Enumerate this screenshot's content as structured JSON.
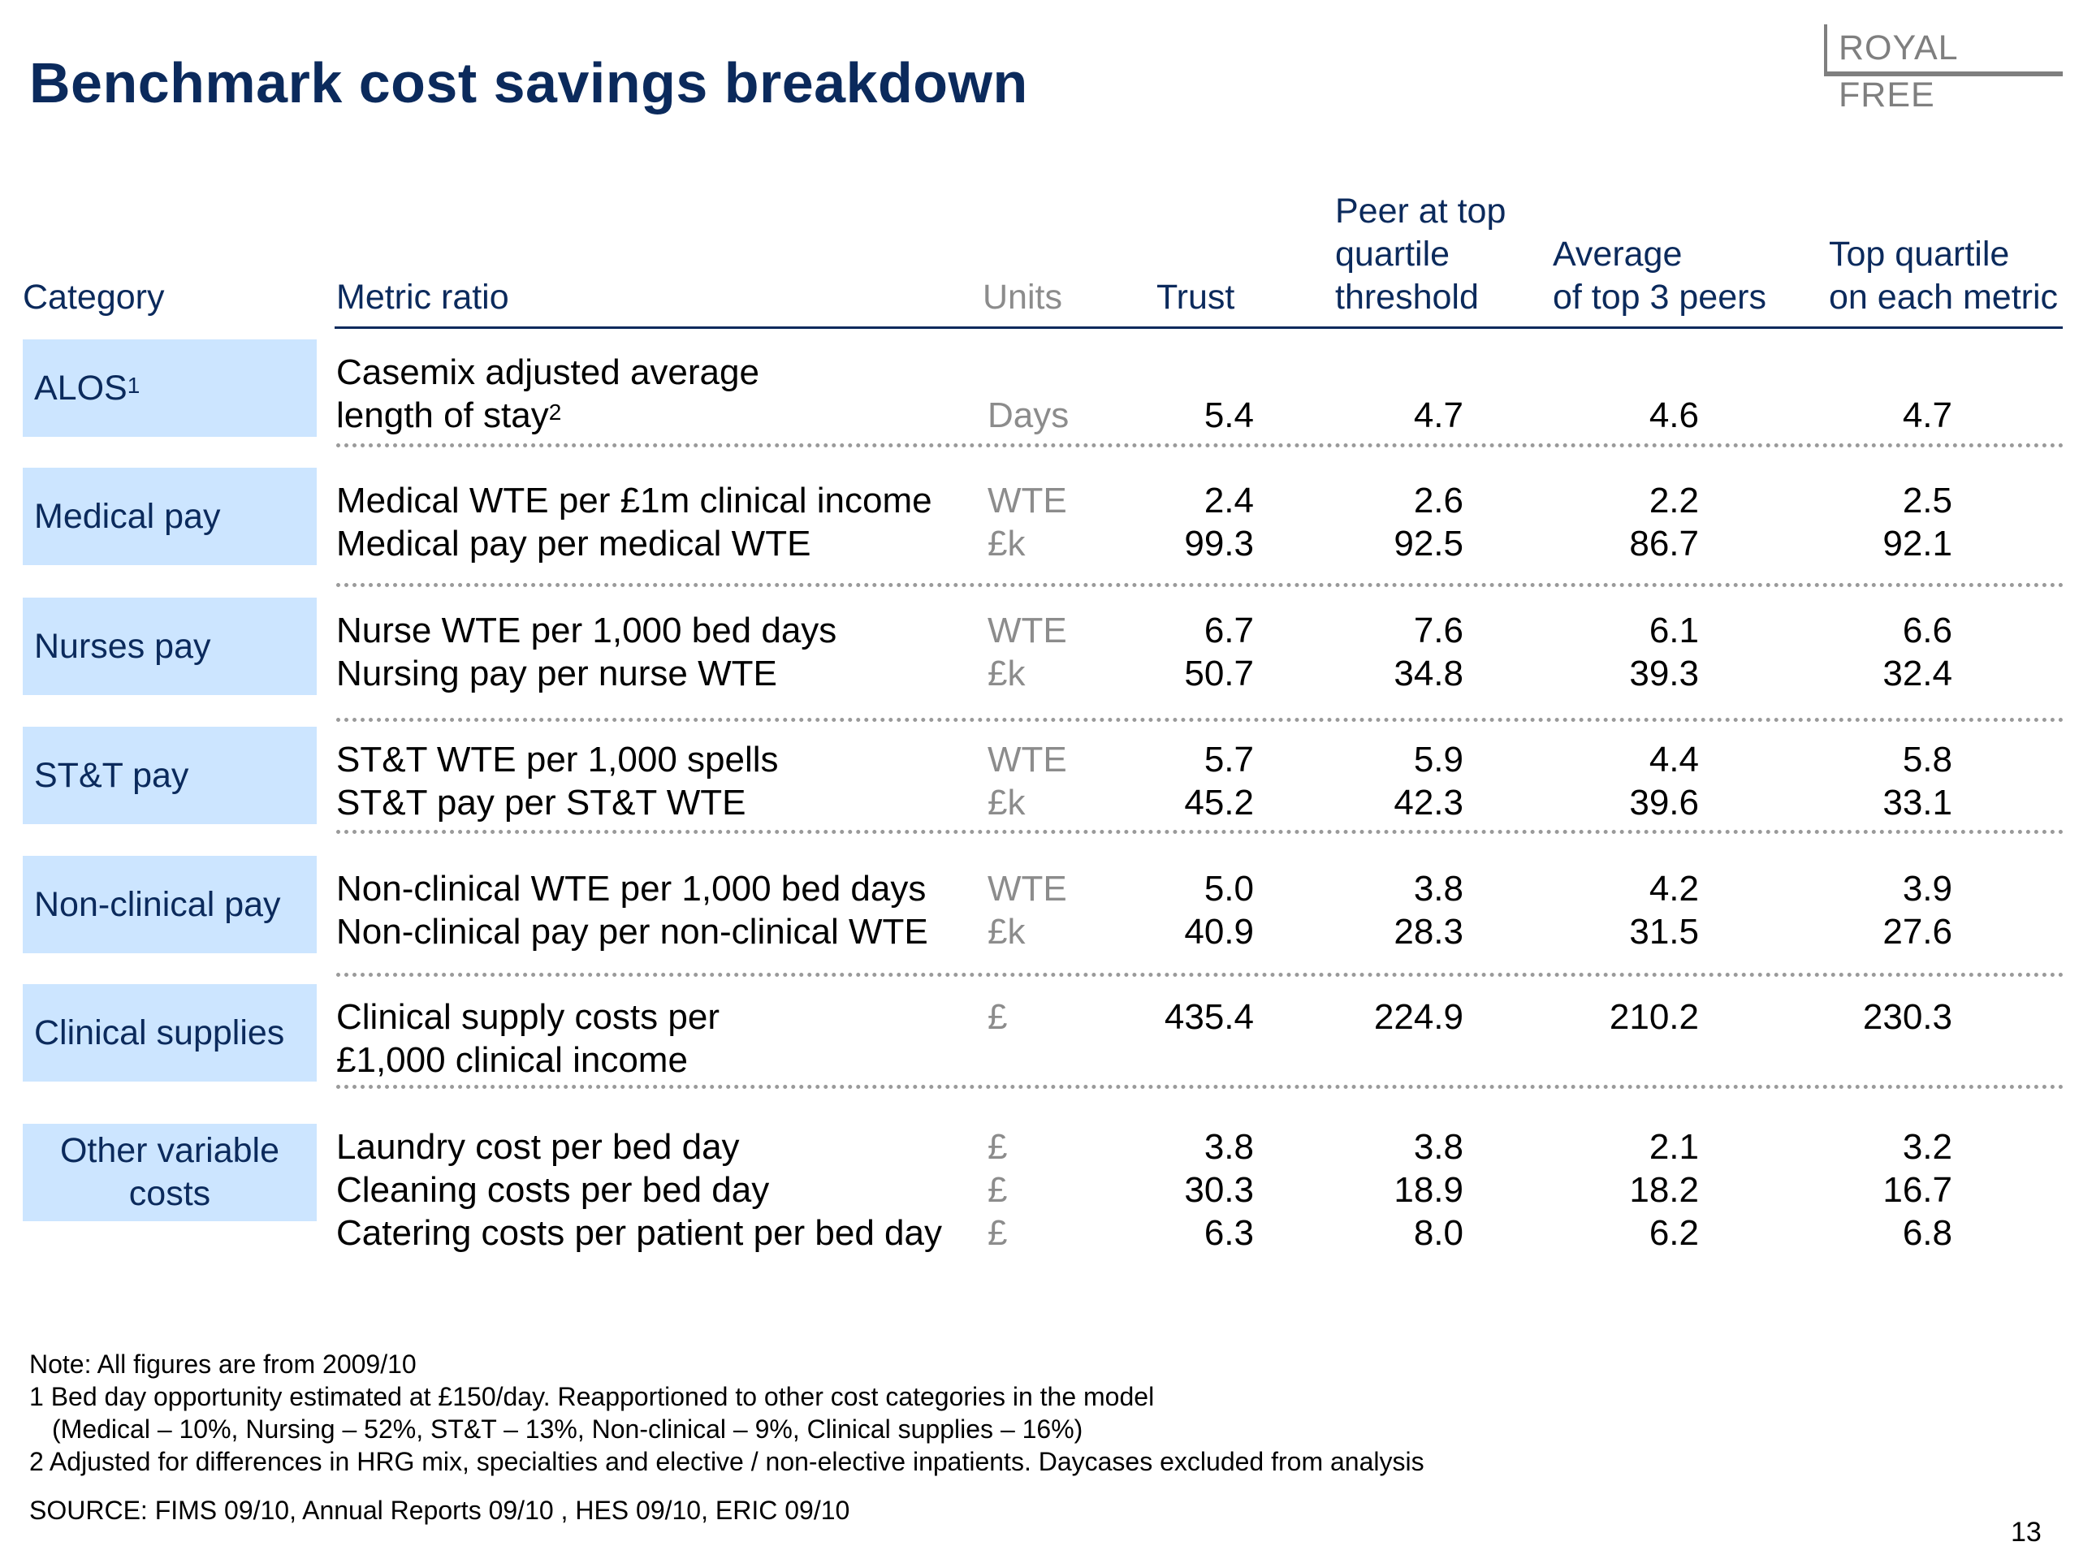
{
  "title": "Benchmark cost savings breakdown",
  "logo": "ROYAL FREE",
  "headers": {
    "category": "Category",
    "metric": "Metric ratio",
    "units": "Units",
    "trust": "Trust",
    "peer_line1": "Peer at top",
    "peer_line2": "quartile",
    "peer_line3": "threshold",
    "avg_line1": "Average",
    "avg_line2": "of top 3 peers",
    "top_line1": "Top quartile",
    "top_line2": "on each metric"
  },
  "categories": [
    {
      "label": "ALOS",
      "sup": "1",
      "rows": [
        {
          "metric": "Casemix adjusted average",
          "unit": "",
          "trust": "",
          "peer": "",
          "avg": "",
          "top": ""
        },
        {
          "metric": "length of stay",
          "metric_sup": "2",
          "unit": "Days",
          "trust": "5.4",
          "peer": "4.7",
          "avg": "4.6",
          "top": "4.7"
        }
      ]
    },
    {
      "label": "Medical pay",
      "rows": [
        {
          "metric": "Medical WTE per £1m clinical income",
          "unit": "WTE",
          "trust": "2.4",
          "peer": "2.6",
          "avg": "2.2",
          "top": "2.5"
        },
        {
          "metric": "Medical pay per medical WTE",
          "unit": "£k",
          "trust": "99.3",
          "peer": "92.5",
          "avg": "86.7",
          "top": "92.1"
        }
      ]
    },
    {
      "label": "Nurses pay",
      "rows": [
        {
          "metric": "Nurse WTE per 1,000 bed days",
          "unit": "WTE",
          "trust": "6.7",
          "peer": "7.6",
          "avg": "6.1",
          "top": "6.6"
        },
        {
          "metric": "Nursing pay per nurse WTE",
          "unit": "£k",
          "trust": "50.7",
          "peer": "34.8",
          "avg": "39.3",
          "top": "32.4"
        }
      ]
    },
    {
      "label": "ST&T pay",
      "rows": [
        {
          "metric": "ST&T WTE per 1,000 spells",
          "unit": "WTE",
          "trust": "5.7",
          "peer": "5.9",
          "avg": "4.4",
          "top": "5.8"
        },
        {
          "metric": "ST&T pay per ST&T WTE",
          "unit": "£k",
          "trust": "45.2",
          "peer": "42.3",
          "avg": "39.6",
          "top": "33.1"
        }
      ]
    },
    {
      "label": "Non-clinical pay",
      "rows": [
        {
          "metric": "Non-clinical WTE per 1,000 bed days",
          "unit": "WTE",
          "trust": "5.0",
          "peer": "3.8",
          "avg": "4.2",
          "top": "3.9"
        },
        {
          "metric": "Non-clinical pay per non-clinical WTE",
          "unit": "£k",
          "trust": "40.9",
          "peer": "28.3",
          "avg": "31.5",
          "top": "27.6"
        }
      ]
    },
    {
      "label": "Clinical supplies",
      "rows": [
        {
          "metric": "Clinical supply costs per",
          "unit": "£",
          "trust": "435.4",
          "peer": "224.9",
          "avg": "210.2",
          "top": "230.3"
        },
        {
          "metric": "£1,000 clinical income",
          "unit": "",
          "trust": "",
          "peer": "",
          "avg": "",
          "top": ""
        }
      ]
    },
    {
      "label": "Other variable\ncosts",
      "rows": [
        {
          "metric": "Laundry cost per bed day",
          "unit": "£",
          "trust": "3.8",
          "peer": "3.8",
          "avg": "2.1",
          "top": "3.2"
        },
        {
          "metric": "Cleaning costs per bed day",
          "unit": "£",
          "trust": "30.3",
          "peer": "18.9",
          "avg": "18.2",
          "top": "16.7"
        },
        {
          "metric": "Catering costs per patient per bed day",
          "unit": "£",
          "trust": "6.3",
          "peer": "8.0",
          "avg": "6.2",
          "top": "6.8"
        }
      ]
    }
  ],
  "notes": {
    "note": "Note: All figures are from 2009/10",
    "fn1a": "1 Bed day opportunity estimated at £150/day. Reapportioned to other cost categories in the model",
    "fn1b": "(Medical – 10%, Nursing – 52%, ST&T – 13%, Non-clinical – 9%, Clinical supplies – 16%)",
    "fn2": "2 Adjusted for differences in HRG mix, specialties and elective / non-elective inpatients. Daycases excluded from analysis",
    "source": "SOURCE: FIMS 09/10, Annual Reports 09/10 , HES 09/10, ERIC 09/10"
  },
  "page_number": "13"
}
